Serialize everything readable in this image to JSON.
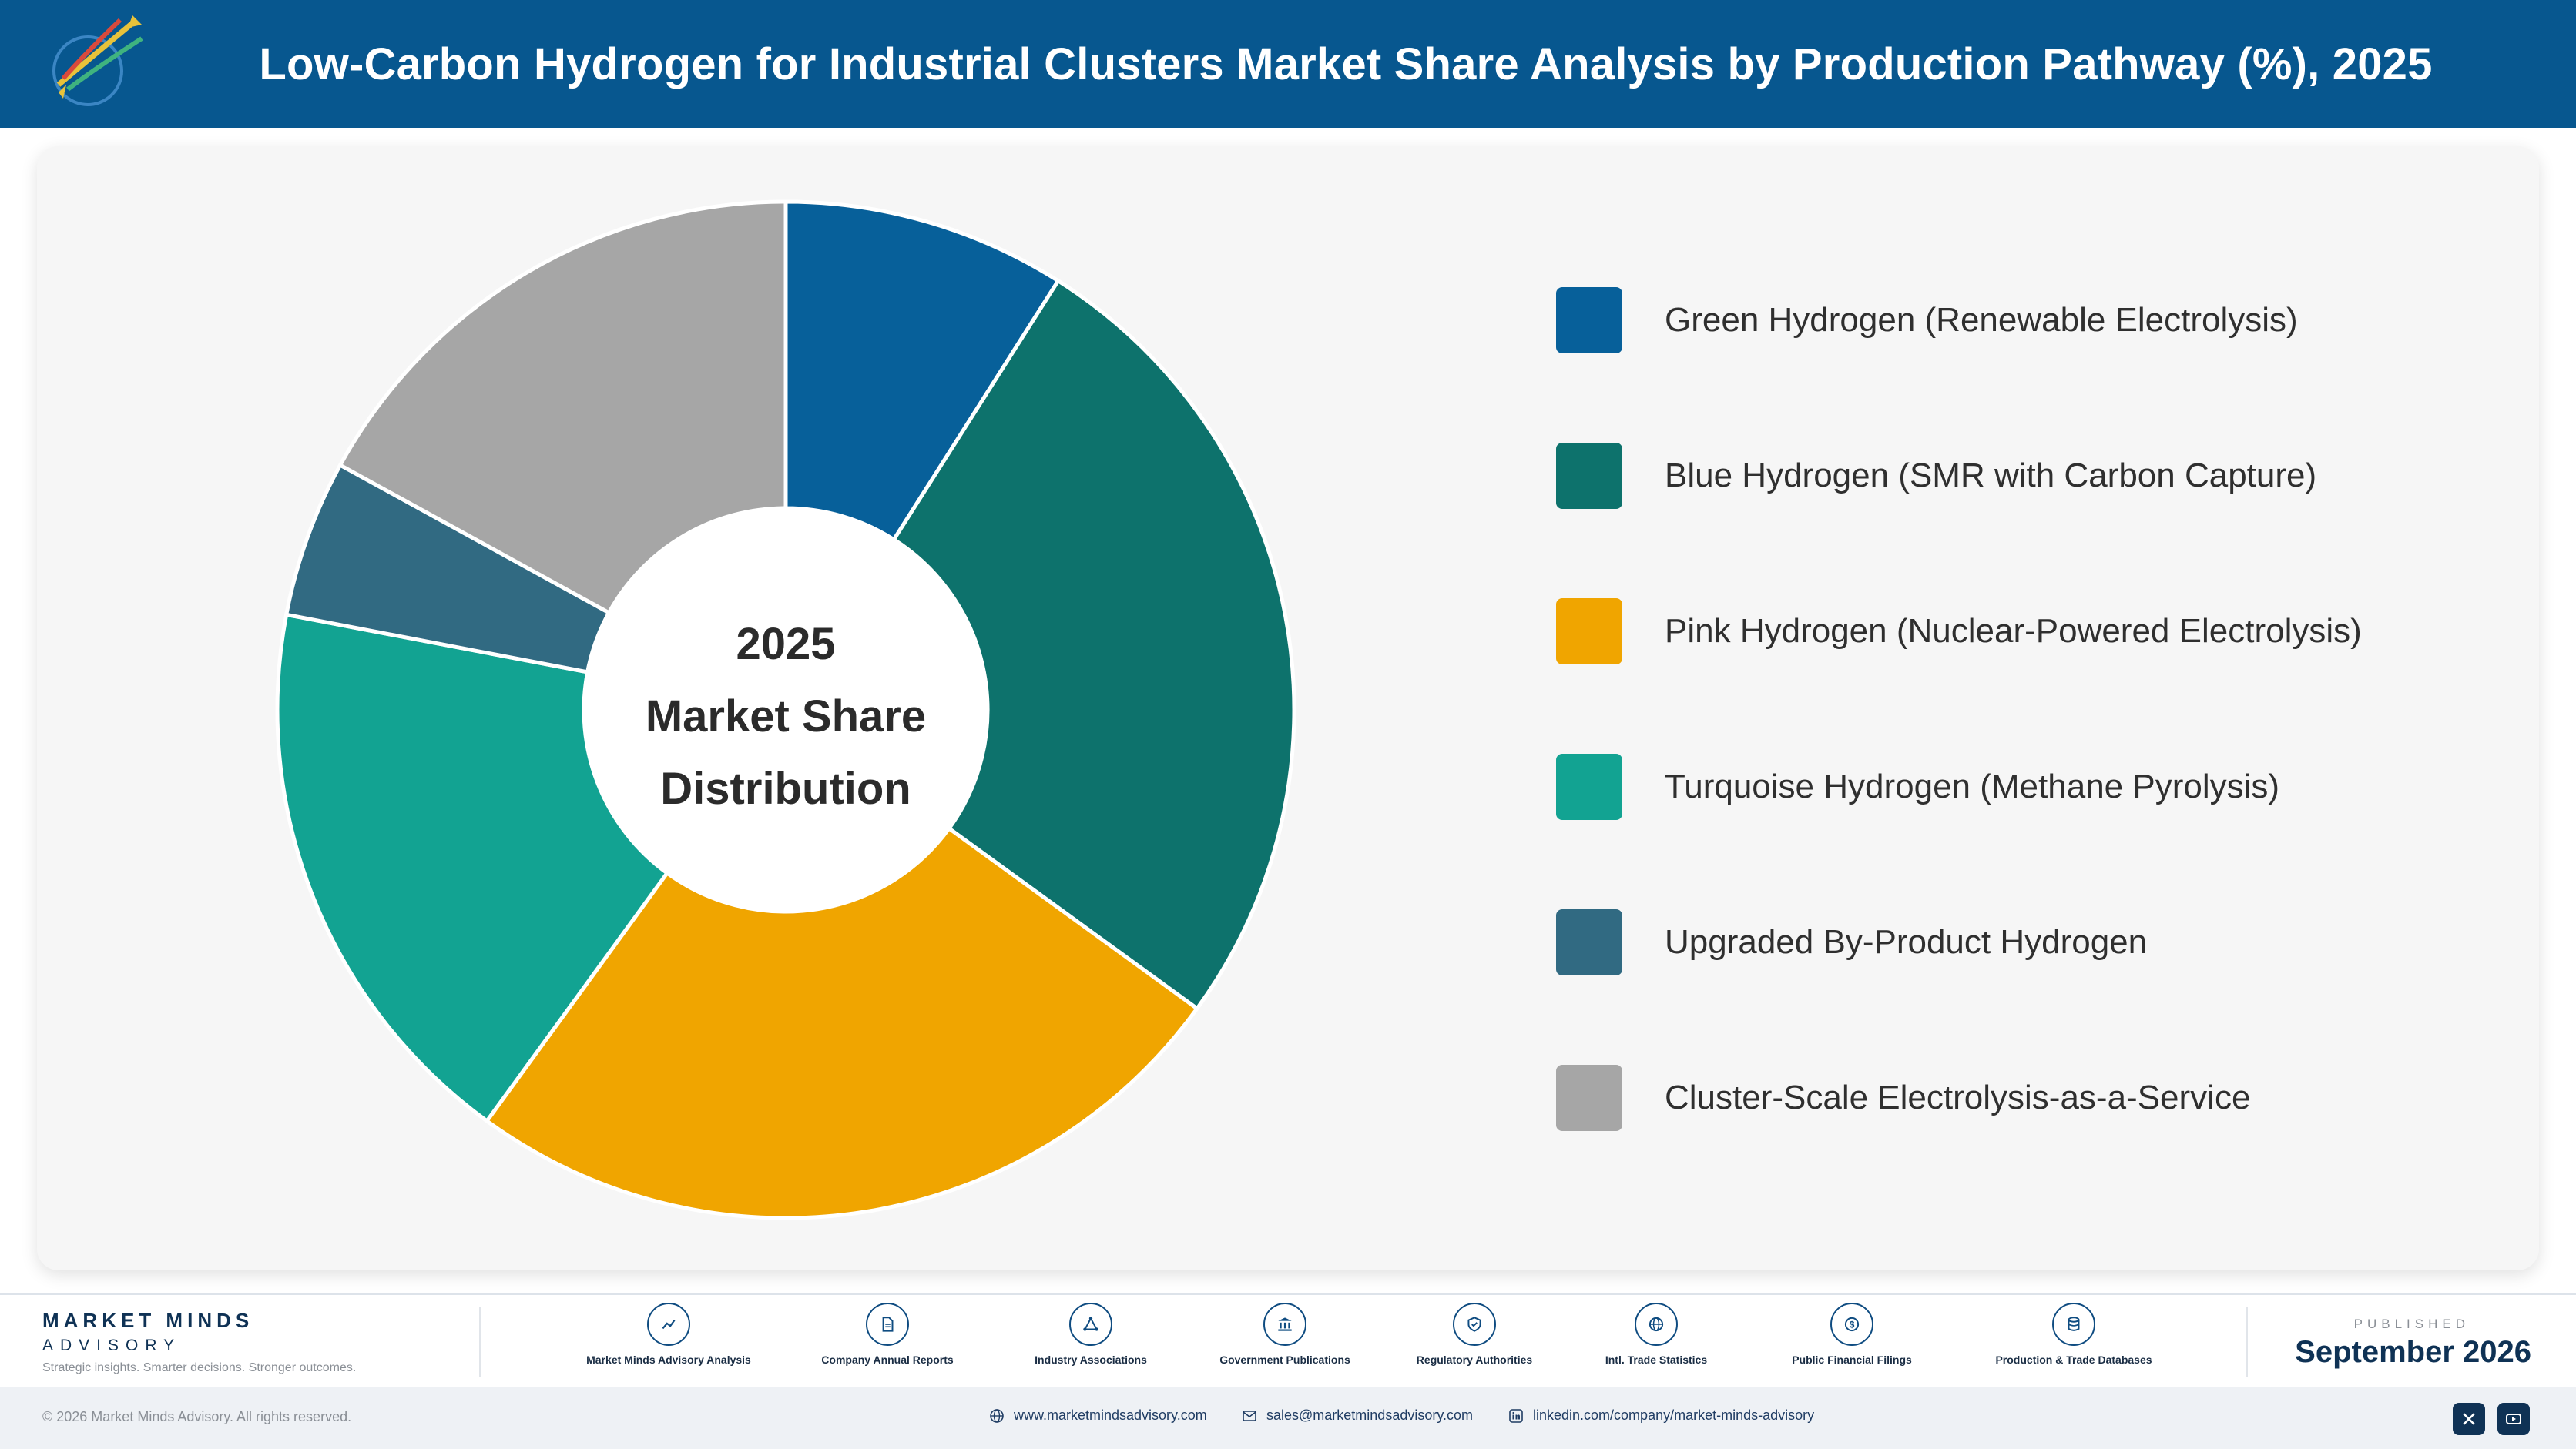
{
  "header": {
    "title": "Low-Carbon Hydrogen for Industrial Clusters Market Share Analysis by Production Pathway (%), 2025"
  },
  "chart_data": {
    "type": "pie",
    "variant": "donut",
    "title": "Low-Carbon Hydrogen for Industrial Clusters Market Share Analysis by Production Pathway (%), 2025",
    "center_label": [
      "2025",
      "Market Share",
      "Distribution"
    ],
    "legend_position": "right",
    "slices": [
      {
        "label": "Green Hydrogen (Renewable Electrolysis)",
        "value": 9,
        "color": "#07609a"
      },
      {
        "label": "Blue Hydrogen (SMR with Carbon Capture)",
        "value": 26,
        "color": "#0d726c"
      },
      {
        "label": "Pink Hydrogen (Nuclear-Powered Electrolysis)",
        "value": 25,
        "color": "#f0a500"
      },
      {
        "label": "Turquoise Hydrogen (Methane Pyrolysis)",
        "value": 18,
        "color": "#12a392"
      },
      {
        "label": "Upgraded By-Product Hydrogen",
        "value": 5,
        "color": "#316a82"
      },
      {
        "label": "Cluster-Scale Electrolysis-as-a-Service",
        "value": 17,
        "color": "#a6a6a6"
      }
    ]
  },
  "footer": {
    "brand_name": "MARKET MINDS",
    "brand_sub": "ADVISORY",
    "tagline": "Strategic insights. Smarter decisions. Stronger outcomes.",
    "sources": [
      {
        "label": "Market Minds Advisory Analysis",
        "icon": "chart-line-icon"
      },
      {
        "label": "Company Annual Reports",
        "icon": "document-icon"
      },
      {
        "label": "Industry Associations",
        "icon": "network-icon"
      },
      {
        "label": "Government Publications",
        "icon": "government-building-icon"
      },
      {
        "label": "Regulatory Authorities",
        "icon": "shield-check-icon"
      },
      {
        "label": "Intl. Trade Statistics",
        "icon": "globe-icon"
      },
      {
        "label": "Public Financial Filings",
        "icon": "dollar-coin-icon"
      },
      {
        "label": "Production & Trade Databases",
        "icon": "database-icon"
      }
    ],
    "published_kicker": "PUBLISHED",
    "published_date": "September 2026",
    "copyright": "© 2026 Market Minds Advisory. All rights reserved.",
    "website": "www.marketmindsadvisory.com",
    "email": "sales@marketmindsadvisory.com",
    "linkedin": "linkedin.com/company/market-minds-advisory"
  },
  "colors": {
    "header_bg": "#07578f",
    "brand_navy": "#0f3255"
  }
}
